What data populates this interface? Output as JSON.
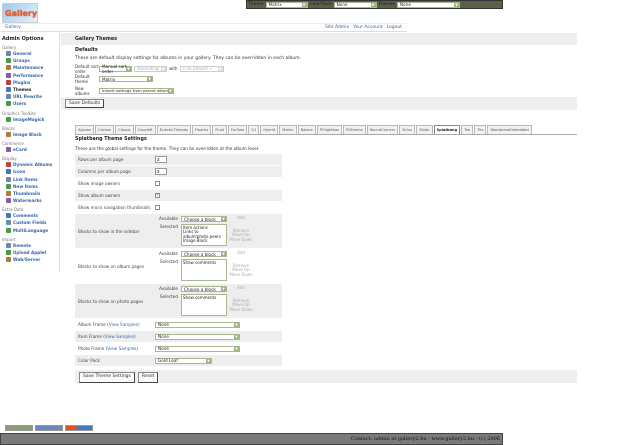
{
  "topbar": {
    "theme_label": "Theme",
    "theme_value": "Matrix",
    "colorpack_label": "ColorPack",
    "colorpack_value": "None",
    "frames_label": "Frames",
    "frames_value": "None"
  },
  "logo_text": "Gallery",
  "breadcrumb": {
    "root": "Gallery",
    "links": [
      "Site Admin",
      "Your Account",
      "Logout"
    ]
  },
  "sidebar": {
    "title": "Admin Options",
    "groups": [
      {
        "label": "Gallery",
        "items": [
          "General",
          "Groups",
          "Maintenance",
          "Performance",
          "Plugins",
          "Themes",
          "URL Rewrite",
          "Users"
        ]
      },
      {
        "label": "Graphics Toolkits",
        "items": [
          "ImageMagick"
        ]
      },
      {
        "label": "Blocks",
        "items": [
          "Image Block"
        ]
      },
      {
        "label": "Commerce",
        "items": [
          "eCard"
        ]
      },
      {
        "label": "Display",
        "items": [
          "Dynamic Albums",
          "Icons",
          "Link Items",
          "New Items",
          "Thumbnails",
          "Watermarks"
        ]
      },
      {
        "label": "Extra Data",
        "items": [
          "Comments",
          "Custom Fields",
          "MultiLanguage"
        ]
      },
      {
        "label": "Import",
        "items": [
          "Remote",
          "Upload Applet",
          "Web/Server"
        ]
      }
    ],
    "current": "Themes"
  },
  "main": {
    "title": "Gallery Themes",
    "defaults": {
      "heading": "Defaults",
      "description": "These are default display settings for albums in your gallery. They can be overridden in each album.",
      "sort_label": "Default sort order",
      "sort_value": "Manual sort order",
      "direction_value": "Ascending",
      "with_label": "with",
      "preset_value": "« no presort »",
      "theme_label": "Default theme",
      "theme_value": "Matrix",
      "new_label": "New albums",
      "new_value": "Inherit settings from parent album",
      "save_label": "Save Defaults"
    },
    "tabs": [
      "Ajaxian",
      "Carbon",
      "Classic",
      "Copyleft",
      "EclecticThreads",
      "Floatrix",
      "Fluid",
      "ForSale",
      "G1",
      "Hybrid",
      "Matrix",
      "Nature",
      "PGlightbox",
      "PGtheme",
      "RoundCorners",
      "Siriux",
      "Slider",
      "Splatbang",
      "Tea",
      "Tile",
      "WordpressEmbedded"
    ],
    "active_tab": "Splatbang",
    "settings": {
      "heading": "Splatbang Theme Settings",
      "description": "These are the global settings for the theme. They can be overridden at the album level.",
      "rows_label": "Rows per album page",
      "rows_value": "3",
      "cols_label": "Columns per album page",
      "cols_value": "3",
      "image_owners_label": "Show image owners",
      "image_owners": false,
      "album_owners_label": "Show album owners",
      "album_owners": true,
      "micro_label": "Show micro navigation thumbnails",
      "micro": false,
      "available_label": "Available",
      "selected_label": "Selected",
      "choose": "Choose a block",
      "add": "Add",
      "remove": "Remove",
      "move_up": "Move Up",
      "move_down": "Move Down",
      "sidebar_blocks_label": "Blocks to show in the sidebar",
      "sidebar_blocks": [
        "Item actions",
        "Links to album/photo peers",
        "Image Block"
      ],
      "album_blocks_label": "Blocks to show on album pages",
      "album_blocks": [
        "Show comments"
      ],
      "photo_blocks_label": "Blocks to show on photo pages",
      "photo_blocks": [
        "Show comments"
      ],
      "view_samples": "View Samples",
      "album_frame_label": "Album Frame",
      "album_frame": "None",
      "item_frame_label": "Item Frame",
      "item_frame": "None",
      "photo_frame_label": "Photo Frame",
      "photo_frame": "None",
      "color_pack_label": "Color Pack",
      "color_pack": "Gold Leaf",
      "save_label": "Save Theme Settings",
      "reset_label": "Reset"
    }
  },
  "footer": "Contact: admin at gallery2.hu - www.gallery2.hu - (c) 2006"
}
